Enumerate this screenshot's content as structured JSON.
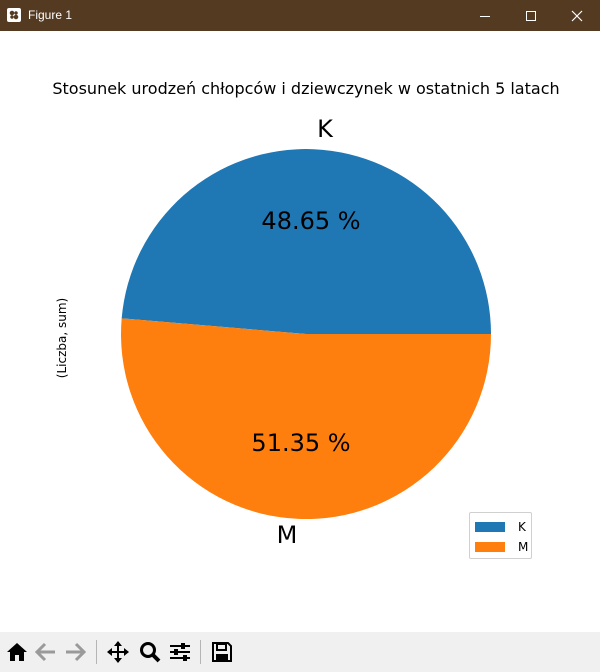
{
  "window": {
    "title": "Figure 1",
    "icon": "matplotlib-figure-icon",
    "controls": [
      "minimize-icon",
      "maximize-icon",
      "close-icon"
    ],
    "titlebar_color": "#553a22"
  },
  "chart_data": {
    "type": "pie",
    "title": "Stosunek urodzeń chłopców i dziewczynek w ostatnich 5 latach",
    "ylabel": "(Liczba, sum)",
    "categories": [
      "K",
      "M"
    ],
    "values": [
      48.65,
      51.35
    ],
    "slice_labels": [
      "48.65 %",
      "51.35 %"
    ],
    "colors": [
      "#1f77b4",
      "#ff7f0e"
    ],
    "legend": {
      "placement": "lower right",
      "entries": [
        "K",
        "M"
      ]
    }
  },
  "toolbar": {
    "buttons": [
      "home-icon",
      "back-icon",
      "forward-icon",
      "pan-icon",
      "zoom-icon",
      "configure-subplots-icon",
      "save-icon"
    ]
  }
}
